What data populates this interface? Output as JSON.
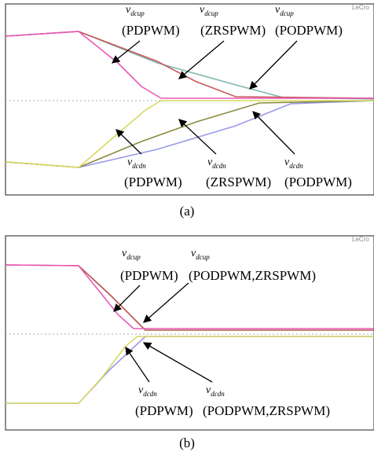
{
  "panels": [
    {
      "caption": "(a)",
      "brand": "LeCro",
      "labels": [
        {
          "symbol": "v",
          "sub": "dcup",
          "mode": "(PDPWM)"
        },
        {
          "symbol": "v",
          "sub": "dcup",
          "mode": "(ZRSPWM)"
        },
        {
          "symbol": "v",
          "sub": "dcup",
          "mode": "(PODPWM)"
        },
        {
          "symbol": "v",
          "sub": "dcdn",
          "mode": "(PDPWM)"
        },
        {
          "symbol": "v",
          "sub": "dcdn",
          "mode": "(ZRSPWM)"
        },
        {
          "symbol": "v",
          "sub": "dcdn",
          "mode": "(PODPWM)"
        }
      ]
    },
    {
      "caption": "(b)",
      "brand": "LeCro",
      "labels": [
        {
          "symbol": "v",
          "sub": "dcup",
          "mode": "(PDPWM)"
        },
        {
          "symbol": "v",
          "sub": "dcup",
          "mode": "(PODPWM,ZRSPWM)"
        },
        {
          "symbol": "v",
          "sub": "dcdn",
          "mode": "(PDPWM)"
        },
        {
          "symbol": "v",
          "sub": "dcdn",
          "mode": "(PODPWM,ZRSPWM)"
        }
      ]
    }
  ]
}
